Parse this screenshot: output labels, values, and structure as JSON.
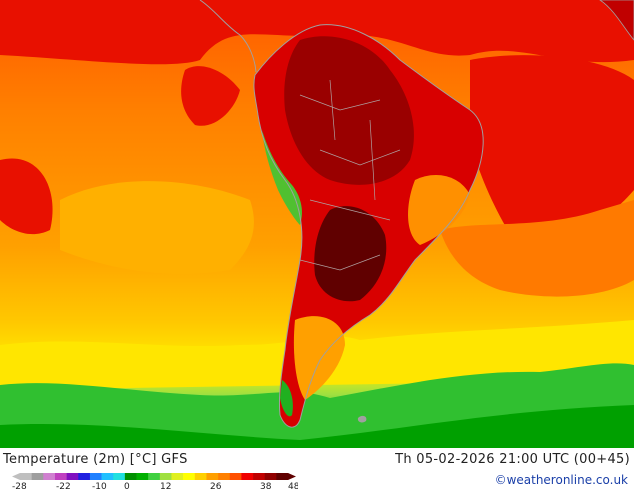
{
  "header": {
    "title": "Temperature (2m) [°C] GFS",
    "datetime": "Th 05-02-2026 21:00 UTC (00+45)",
    "credit": "©weatheronline.co.uk"
  },
  "legend": {
    "ticks": [
      "-28",
      "-22",
      "-10",
      "0",
      "12",
      "26",
      "38",
      "48"
    ],
    "colors": [
      "#bfbfbf",
      "#9e9e9e",
      "#d080d0",
      "#c040c0",
      "#8010c0",
      "#2020e0",
      "#2080ff",
      "#20c0ff",
      "#20e0e0",
      "#009000",
      "#00b000",
      "#40d040",
      "#a0e040",
      "#e0f020",
      "#ffff00",
      "#ffd000",
      "#ffa000",
      "#ff8000",
      "#ff5000",
      "#f00000",
      "#c00000",
      "#900000",
      "#600000"
    ]
  },
  "map": {
    "palette": {
      "ocean_cool": "#00b000",
      "ocean_mild": "#ffd000",
      "ocean_warm": "#ff8c00",
      "land_hot": "#d00000",
      "land_very_hot": "#800000",
      "andes_cool": "#00d000",
      "coast_lines": "#a0a0a0"
    }
  }
}
